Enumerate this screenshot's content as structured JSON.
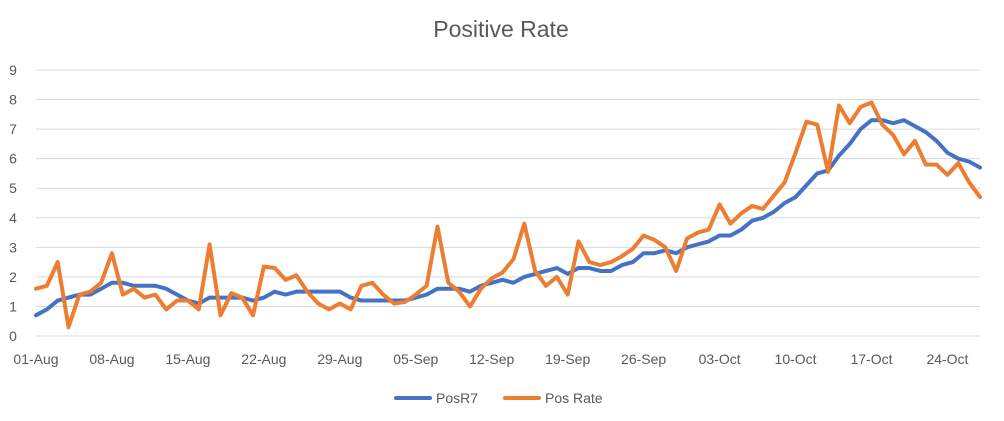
{
  "chart_data": {
    "type": "line",
    "title": "Positive Rate",
    "xlabel": "",
    "ylabel": "",
    "ylim": [
      0,
      9
    ],
    "y_ticks": [
      "0",
      "1",
      "2",
      "3",
      "4",
      "5",
      "6",
      "7",
      "8",
      "9"
    ],
    "x_tick_labels": [
      "01-Aug",
      "08-Aug",
      "15-Aug",
      "22-Aug",
      "29-Aug",
      "05-Sep",
      "12-Sep",
      "19-Sep",
      "26-Sep",
      "03-Oct",
      "10-Oct",
      "17-Oct",
      "24-Oct"
    ],
    "grid": "horizontal",
    "legend_position": "bottom",
    "x": [
      "01-Aug",
      "02-Aug",
      "03-Aug",
      "04-Aug",
      "05-Aug",
      "06-Aug",
      "07-Aug",
      "08-Aug",
      "09-Aug",
      "10-Aug",
      "11-Aug",
      "12-Aug",
      "13-Aug",
      "14-Aug",
      "15-Aug",
      "16-Aug",
      "17-Aug",
      "18-Aug",
      "19-Aug",
      "20-Aug",
      "21-Aug",
      "22-Aug",
      "23-Aug",
      "24-Aug",
      "25-Aug",
      "26-Aug",
      "27-Aug",
      "28-Aug",
      "29-Aug",
      "30-Aug",
      "31-Aug",
      "01-Sep",
      "02-Sep",
      "03-Sep",
      "04-Sep",
      "05-Sep",
      "06-Sep",
      "07-Sep",
      "08-Sep",
      "09-Sep",
      "10-Sep",
      "11-Sep",
      "12-Sep",
      "13-Sep",
      "14-Sep",
      "15-Sep",
      "16-Sep",
      "17-Sep",
      "18-Sep",
      "19-Sep",
      "20-Sep",
      "21-Sep",
      "22-Sep",
      "23-Sep",
      "24-Sep",
      "25-Sep",
      "26-Sep",
      "27-Sep",
      "28-Sep",
      "29-Sep",
      "30-Sep",
      "01-Oct",
      "02-Oct",
      "03-Oct",
      "04-Oct",
      "05-Oct",
      "06-Oct",
      "07-Oct",
      "08-Oct",
      "09-Oct",
      "10-Oct",
      "11-Oct",
      "12-Oct",
      "13-Oct",
      "14-Oct",
      "15-Oct",
      "16-Oct",
      "17-Oct",
      "18-Oct",
      "19-Oct",
      "20-Oct",
      "21-Oct",
      "22-Oct",
      "23-Oct",
      "24-Oct",
      "25-Oct",
      "26-Oct",
      "27-Oct"
    ],
    "series": [
      {
        "name": "PosR7",
        "color": "#4472C4",
        "values": [
          0.7,
          0.9,
          1.2,
          1.3,
          1.4,
          1.4,
          1.6,
          1.8,
          1.8,
          1.7,
          1.7,
          1.7,
          1.6,
          1.4,
          1.2,
          1.1,
          1.3,
          1.3,
          1.3,
          1.3,
          1.2,
          1.3,
          1.5,
          1.4,
          1.5,
          1.5,
          1.5,
          1.5,
          1.5,
          1.3,
          1.2,
          1.2,
          1.2,
          1.2,
          1.2,
          1.3,
          1.4,
          1.6,
          1.6,
          1.6,
          1.5,
          1.7,
          1.8,
          1.9,
          1.8,
          2.0,
          2.1,
          2.2,
          2.3,
          2.1,
          2.3,
          2.3,
          2.2,
          2.2,
          2.4,
          2.5,
          2.8,
          2.8,
          2.9,
          2.8,
          3.0,
          3.1,
          3.2,
          3.4,
          3.4,
          3.6,
          3.9,
          4.0,
          4.2,
          4.5,
          4.7,
          5.1,
          5.5,
          5.6,
          6.1,
          6.5,
          7.0,
          7.3,
          7.3,
          7.2,
          7.3,
          7.1,
          6.9,
          6.6,
          6.2,
          6.0,
          5.9,
          5.7
        ]
      },
      {
        "name": "Pos Rate",
        "color": "#ED7D31",
        "values": [
          1.6,
          1.7,
          2.5,
          0.3,
          1.4,
          1.5,
          1.8,
          2.8,
          1.4,
          1.6,
          1.3,
          1.4,
          0.9,
          1.2,
          1.2,
          0.9,
          3.1,
          0.7,
          1.45,
          1.3,
          0.7,
          2.35,
          2.3,
          1.9,
          2.05,
          1.5,
          1.1,
          0.9,
          1.1,
          0.9,
          1.7,
          1.8,
          1.4,
          1.1,
          1.15,
          1.4,
          1.7,
          3.7,
          1.8,
          1.5,
          1.0,
          1.6,
          1.95,
          2.15,
          2.6,
          3.8,
          2.2,
          1.7,
          2.0,
          1.4,
          3.2,
          2.5,
          2.4,
          2.5,
          2.7,
          2.95,
          3.4,
          3.25,
          3.0,
          2.2,
          3.3,
          3.5,
          3.6,
          4.45,
          3.8,
          4.15,
          4.4,
          4.3,
          4.75,
          5.2,
          6.2,
          7.25,
          7.15,
          5.55,
          7.8,
          7.2,
          7.75,
          7.9,
          7.15,
          6.8,
          6.15,
          6.6,
          5.8,
          5.8,
          5.45,
          5.85,
          5.2,
          4.7
        ]
      }
    ]
  }
}
